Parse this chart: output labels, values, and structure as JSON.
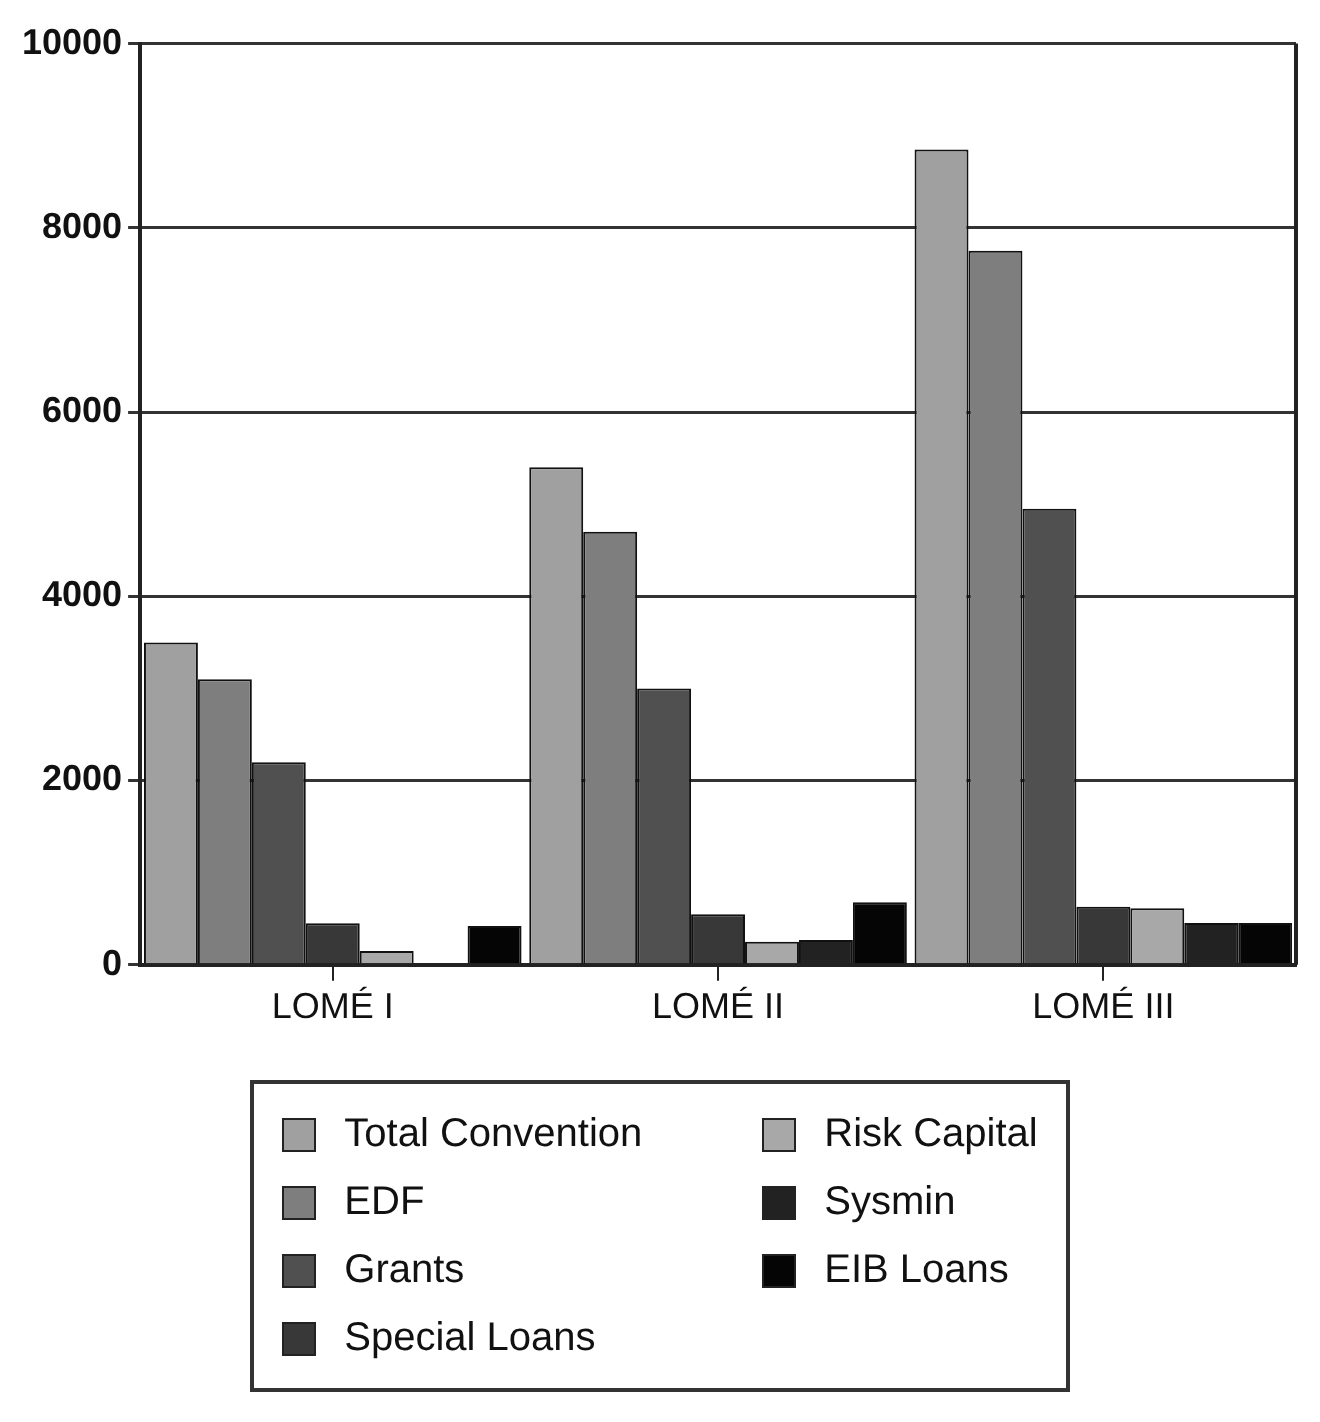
{
  "chart_data": {
    "type": "bar",
    "categories": [
      "LOMÉ I",
      "LOMÉ II",
      "LOMÉ III"
    ],
    "series": [
      {
        "name": "Total Convention",
        "color": "#a0a0a0",
        "values": [
          3500,
          5400,
          8850
        ]
      },
      {
        "name": "EDF",
        "color": "#7e7e7e",
        "values": [
          3100,
          4700,
          7750
        ]
      },
      {
        "name": "Grants",
        "color": "#505050",
        "values": [
          2200,
          3000,
          4950
        ]
      },
      {
        "name": "Special Loans",
        "color": "#383838",
        "values": [
          450,
          550,
          630
        ]
      },
      {
        "name": "Risk Capital",
        "color": "#a8a8a8",
        "values": [
          150,
          250,
          615
        ]
      },
      {
        "name": "Sysmin",
        "color": "#222222",
        "values": [
          0,
          270,
          455
        ]
      },
      {
        "name": "EIB Loans",
        "color": "#050505",
        "values": [
          420,
          680,
          455
        ]
      }
    ],
    "ylim": [
      0,
      10000
    ],
    "yticks": [
      0,
      2000,
      4000,
      6000,
      8000,
      10000
    ],
    "grid": "y",
    "legend": "bottom"
  }
}
